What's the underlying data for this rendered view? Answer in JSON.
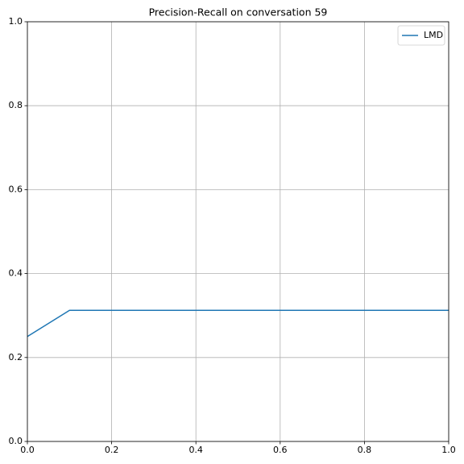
{
  "chart_data": {
    "type": "line",
    "title": "Precision-Recall on conversation 59",
    "x": [
      0,
      0.1,
      1.0
    ],
    "series": [
      {
        "name": "LMD",
        "color": "#1f77b4",
        "values": [
          0.25,
          0.3125,
          0.3125
        ]
      }
    ],
    "xlim": [
      0,
      1
    ],
    "ylim": [
      0,
      1
    ],
    "xticks": [
      {
        "value": 0,
        "label": "0.0"
      },
      0.2,
      0.4,
      0.6,
      0.8,
      {
        "value": 1,
        "label": "1.0"
      }
    ],
    "yticks": [
      {
        "value": 0,
        "label": "0.0"
      },
      0.2,
      0.4,
      0.6,
      0.8,
      {
        "value": 1,
        "label": "1.0"
      }
    ],
    "grid": true,
    "legend": "upper right"
  }
}
